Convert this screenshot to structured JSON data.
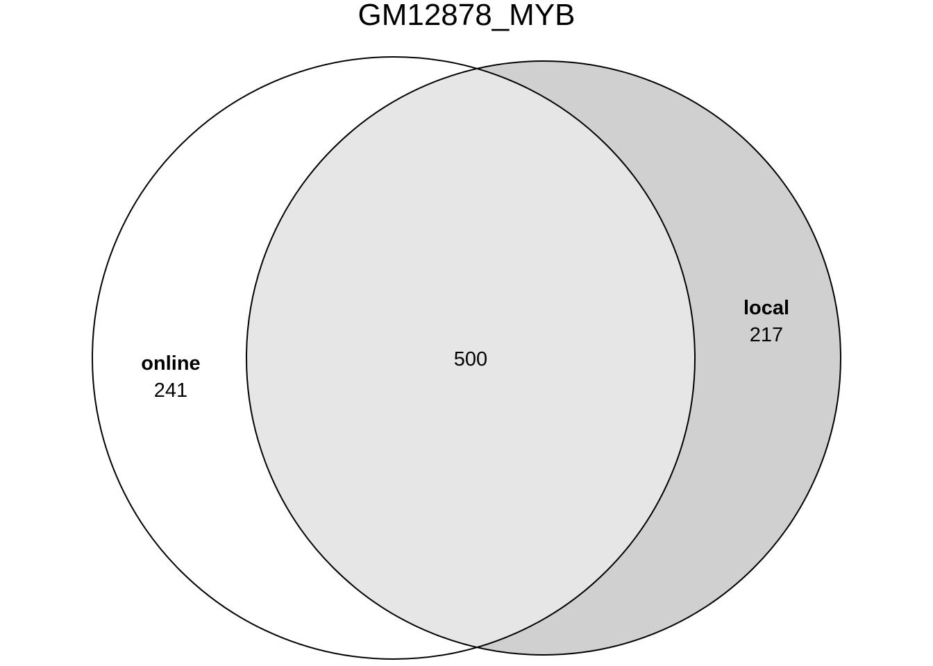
{
  "title": "GM12878_MYB",
  "sets": [
    {
      "name": "online",
      "only_count": "241"
    },
    {
      "name": "local",
      "only_count": "217"
    }
  ],
  "intersection": {
    "count": "500"
  },
  "colors": {
    "background": "#ffffff",
    "intersection_fill": "#e6e6e6",
    "local_only_fill": "#d0d0d0",
    "online_only_fill": "#ffffff",
    "outline": "#000000"
  }
}
